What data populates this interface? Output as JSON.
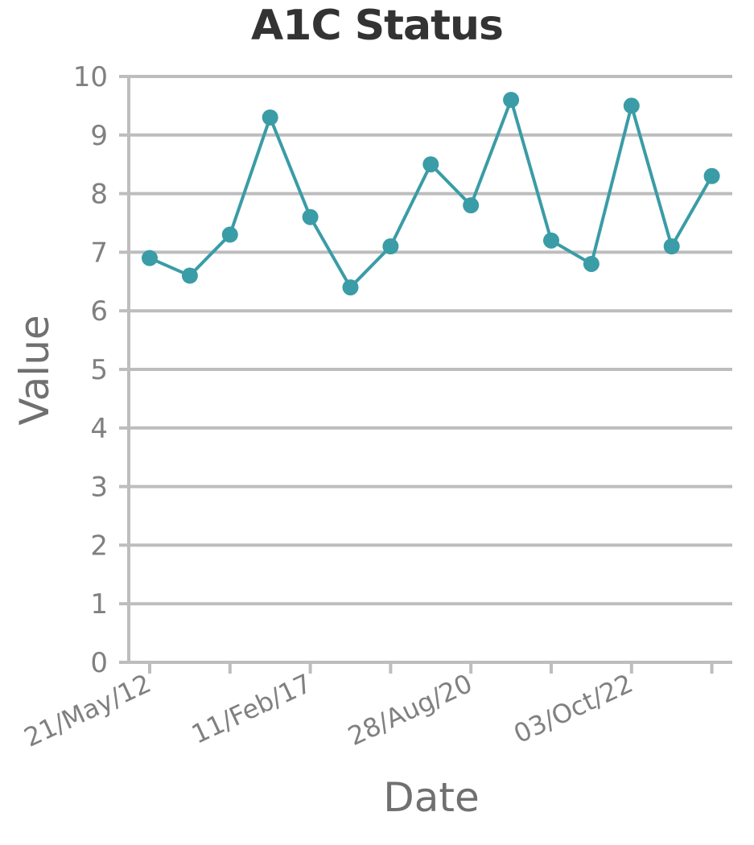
{
  "chart_data": {
    "type": "line",
    "title": "A1C Status",
    "xlabel": "Date",
    "ylabel": "Value",
    "ylim": [
      0,
      10
    ],
    "yticks": [
      0,
      1,
      2,
      3,
      4,
      5,
      6,
      7,
      8,
      9,
      10
    ],
    "x_tick_labels": [
      "21/May/12",
      "11/Feb/17",
      "28/Aug/20",
      "03/Oct/22"
    ],
    "grid": true,
    "color": "#3a9ca6",
    "values": [
      6.9,
      6.6,
      7.3,
      9.3,
      7.6,
      6.4,
      7.1,
      8.5,
      7.8,
      9.6,
      7.2,
      6.8,
      9.5,
      7.1,
      8.3
    ]
  }
}
